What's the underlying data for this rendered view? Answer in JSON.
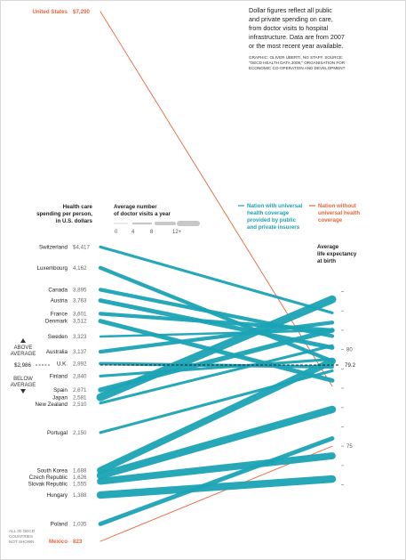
{
  "chart_data": {
    "type": "slope",
    "note": [
      "Dollar figures reflect all public",
      "and private spending on care,",
      "from doctor visits to hospital",
      "infrastructure. Data are from 2007",
      "or the most recent year available."
    ],
    "credit": [
      "GRAPHIC: OLIVER UBERTI, NG STAFF. SOURCE:",
      "\"OECD HEALTH DATA 2009,\" ORGANISATION FOR",
      "ECONOMIC CO-OPERATION AND DEVELOPMENT"
    ],
    "left_header": [
      "Health care",
      "spending per person,",
      "in U.S. dollars"
    ],
    "visits_header": [
      "Average number",
      "of doctor visits a year"
    ],
    "visits_scale": [
      "0",
      "4",
      "8",
      "12+"
    ],
    "right_header": [
      "Average",
      "life expectancy",
      "at birth"
    ],
    "legend": {
      "universal": [
        "Nation with universal",
        "health coverage",
        "provided by public",
        "and private insurers"
      ],
      "non_universal": [
        "Nation without",
        "universal health",
        "coverage"
      ]
    },
    "colors": {
      "universal": "#1aa3b4",
      "non_universal": "#e8663a"
    },
    "average": {
      "spending_label": "$2,986",
      "spending": 2986,
      "life_expectancy_label": "79.2",
      "life_expectancy": 79.2,
      "above_label": [
        "ABOVE",
        "AVERAGE"
      ],
      "below_label": [
        "BELOW",
        "AVERAGE"
      ]
    },
    "right_axis_ticks": [
      {
        "value": 75,
        "label": "75"
      },
      {
        "value": 80,
        "label": "80"
      }
    ],
    "footnote": [
      "ALL 30 OECD",
      "COUNTRIES",
      "NOT SHOWN"
    ],
    "countries": [
      {
        "name": "United States",
        "spending_label": "$7,290",
        "spending": 7290,
        "life_expectancy": 78.1,
        "visits": 4,
        "universal": false
      },
      {
        "name": "Switzerland",
        "spending_label": "$4,417",
        "spending": 4417,
        "life_expectancy": 81.9,
        "visits": 4,
        "universal": true
      },
      {
        "name": "Luxembourg",
        "spending_label": "4,162",
        "spending": 4162,
        "life_expectancy": 79.4,
        "visits": 6,
        "universal": true
      },
      {
        "name": "Canada",
        "spending_label": "3,895",
        "spending": 3895,
        "life_expectancy": 80.7,
        "visits": 6,
        "universal": true
      },
      {
        "name": "Austria",
        "spending_label": "3,763",
        "spending": 3763,
        "life_expectancy": 80.1,
        "visits": 7,
        "universal": true
      },
      {
        "name": "France",
        "spending_label": "3,601",
        "spending": 3601,
        "life_expectancy": 81.0,
        "visits": 6,
        "universal": true
      },
      {
        "name": "Denmark",
        "spending_label": "3,512",
        "spending": 3512,
        "life_expectancy": 78.4,
        "visits": 7,
        "universal": true
      },
      {
        "name": "Sweden",
        "spending_label": "3,323",
        "spending": 3323,
        "life_expectancy": 81.0,
        "visits": 3,
        "universal": true
      },
      {
        "name": "Australia",
        "spending_label": "3,137",
        "spending": 3137,
        "life_expectancy": 81.4,
        "visits": 6,
        "universal": true
      },
      {
        "name": "U.K.",
        "spending_label": "2,992",
        "spending": 2992,
        "life_expectancy": 79.1,
        "visits": 5,
        "universal": true
      },
      {
        "name": "Finland",
        "spending_label": "2,840",
        "spending": 2840,
        "life_expectancy": 79.5,
        "visits": 4,
        "universal": true
      },
      {
        "name": "Spain",
        "spending_label": "2,671",
        "spending": 2671,
        "life_expectancy": 81.0,
        "visits": 8,
        "universal": true
      },
      {
        "name": "Japan",
        "spending_label": "2,581",
        "spending": 2581,
        "life_expectancy": 82.6,
        "visits": 14,
        "universal": true
      },
      {
        "name": "New Zealand",
        "spending_label": "2,510",
        "spending": 2510,
        "life_expectancy": 80.2,
        "visits": 4,
        "universal": true
      },
      {
        "name": "Portugal",
        "spending_label": "2,150",
        "spending": 2150,
        "life_expectancy": 78.9,
        "visits": 4,
        "universal": true
      },
      {
        "name": "South Korea",
        "spending_label": "1,688",
        "spending": 1688,
        "life_expectancy": 79.4,
        "visits": 12,
        "universal": true
      },
      {
        "name": "Czech Republic",
        "spending_label": "1,626",
        "spending": 1626,
        "life_expectancy": 76.9,
        "visits": 13,
        "universal": true
      },
      {
        "name": "Slovak Republic",
        "spending_label": "1,555",
        "spending": 1555,
        "life_expectancy": 74.5,
        "visits": 12,
        "universal": true
      },
      {
        "name": "Hungary",
        "spending_label": "1,388",
        "spending": 1388,
        "life_expectancy": 73.3,
        "visits": 13,
        "universal": true
      },
      {
        "name": "Poland",
        "spending_label": "1,035",
        "spending": 1035,
        "life_expectancy": 75.4,
        "visits": 7,
        "universal": true
      },
      {
        "name": "Mexico",
        "spending_label": "823",
        "spending": 823,
        "life_expectancy": 75.0,
        "visits": 3,
        "universal": false
      }
    ]
  }
}
